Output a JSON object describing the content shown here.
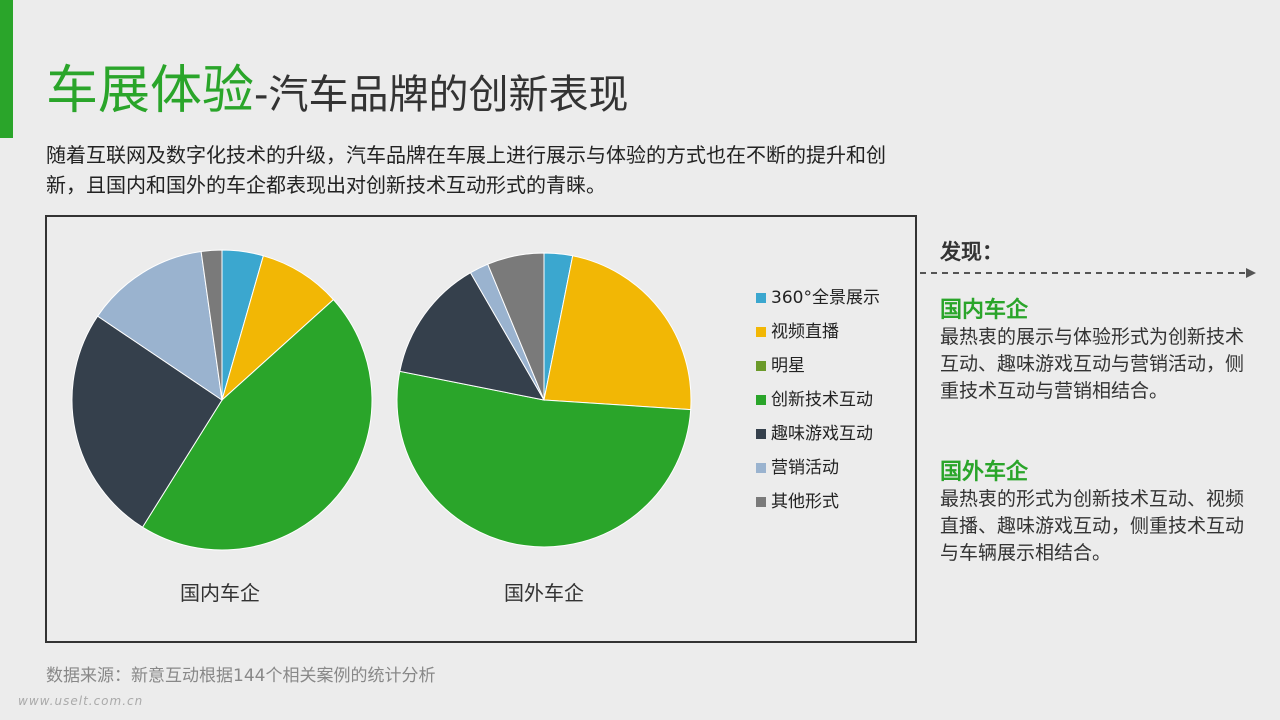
{
  "title": {
    "main": "车展体验",
    "sub": "-汽车品牌的创新表现"
  },
  "intro": "随着互联网及数字化技术的升级，汽车品牌在车展上进行展示与体验的方式也在不断的提升和创新，且国内和国外的车企都表现出对创新技术互动形式的青睐。",
  "chart_data": {
    "type": "pie",
    "legend_position": "right",
    "categories": [
      "360°全景展示",
      "视频直播",
      "明星",
      "创新技术互动",
      "趣味游戏互动",
      "营销活动",
      "其他形式"
    ],
    "colors": [
      "#3ba7cf",
      "#f2b705",
      "#6b9a2a",
      "#2aa52a",
      "#35404c",
      "#9ab3cf",
      "#7a7a7a"
    ],
    "series": [
      {
        "name": "国内车企",
        "values": [
          4,
          8,
          0,
          41,
          23,
          12,
          2
        ]
      },
      {
        "name": "国外车企",
        "values": [
          3,
          22,
          0,
          50,
          13,
          2,
          6
        ]
      }
    ]
  },
  "findings": {
    "heading": "发现：",
    "domestic_title": "国内车企",
    "domestic_text": "最热衷的展示与体验形式为创新技术互动、趣味游戏互动与营销活动，侧重技术互动与营销相结合。",
    "foreign_title": "国外车企",
    "foreign_text": "最热衷的形式为创新技术互动、视频直播、趣味游戏互动，侧重技术互动与车辆展示相结合。"
  },
  "source": "数据来源：新意互动根据144个相关案例的统计分析",
  "watermark": "www.uselt.com.cn"
}
